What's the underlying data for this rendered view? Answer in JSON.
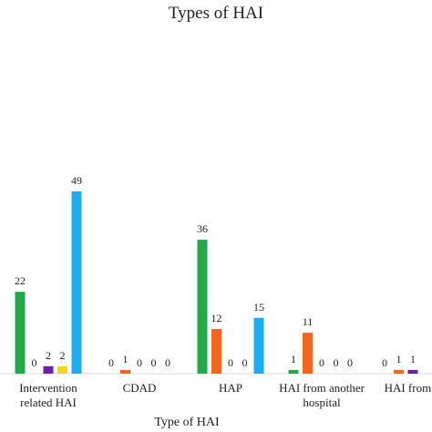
{
  "chart_data": {
    "type": "bar",
    "title": "Types of HAI",
    "x_label": "Type of HAI",
    "categories": [
      "Intervention related HAI",
      "CDAD",
      "HAP",
      "HAI from another hospital",
      "HAI from L"
    ],
    "series": [
      {
        "color": "#21a94b",
        "values": [
          22,
          0,
          36,
          1,
          0
        ]
      },
      {
        "color": "#f26522",
        "values": [
          0,
          1,
          12,
          11,
          1
        ]
      },
      {
        "color": "#6b22a3",
        "values": [
          2,
          0,
          0,
          0,
          1
        ]
      },
      {
        "color": "#f7d90f",
        "values": [
          2,
          0,
          0,
          0,
          null
        ]
      },
      {
        "color": "#1badef",
        "values": [
          49,
          0,
          15,
          0,
          null
        ]
      }
    ]
  }
}
